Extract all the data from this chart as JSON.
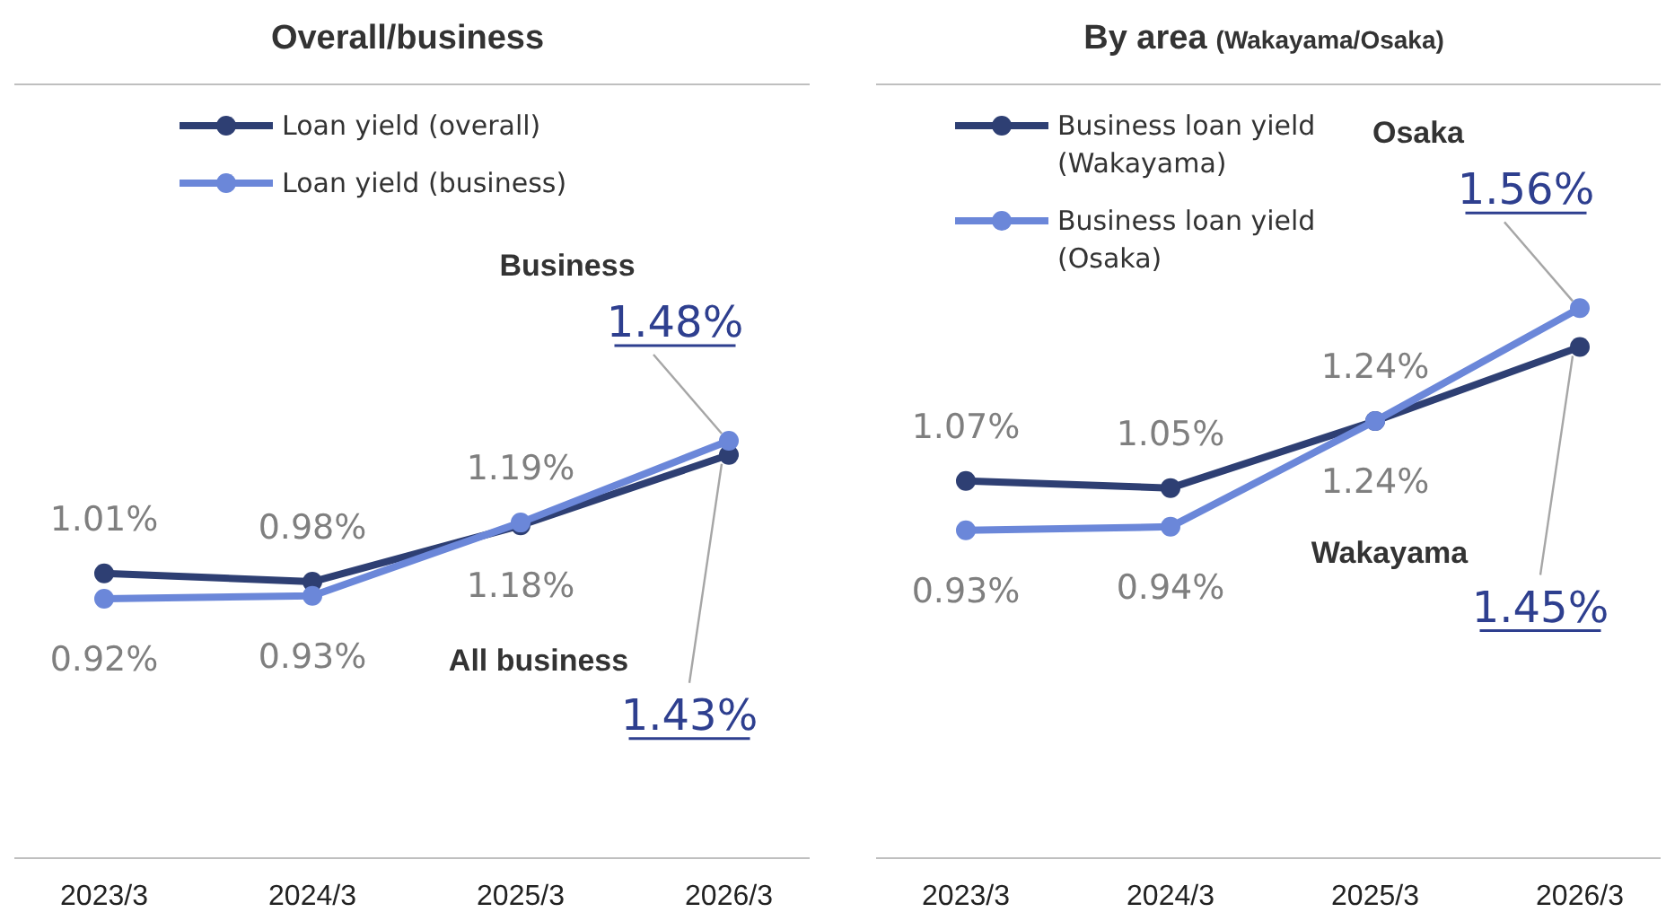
{
  "chart_data": [
    {
      "type": "line",
      "title": "Overall/business",
      "categories": [
        "2023/3",
        "2024/3",
        "2025/3",
        "2026/3"
      ],
      "ylim": [
        0,
        2.75
      ],
      "marker": "circle",
      "legend": "top left",
      "data_labels": true,
      "series": [
        {
          "name": "Loan yield (overall)",
          "color": "#2e3f73",
          "values": [
            1.01,
            0.98,
            1.18,
            1.43
          ],
          "value_labels": [
            "1.01%",
            "0.98%",
            "1.18%",
            "1.43%"
          ]
        },
        {
          "name": "Loan yield (business)",
          "color": "#6b87d9",
          "values": [
            0.92,
            0.93,
            1.19,
            1.48
          ],
          "value_labels": [
            "0.92%",
            "0.93%",
            "1.19%",
            "1.48%"
          ]
        }
      ],
      "annotations": [
        "Business",
        "All business"
      ]
    },
    {
      "type": "line",
      "title": "By area",
      "subtitle": "(Wakayama/Osaka)",
      "categories": [
        "2023/3",
        "2024/3",
        "2025/3",
        "2026/3"
      ],
      "ylim": [
        0,
        2.2
      ],
      "marker": "circle",
      "legend": "top left",
      "data_labels": true,
      "series": [
        {
          "name": "Business loan yield (Wakayama)",
          "color": "#2e3f73",
          "values": [
            1.07,
            1.05,
            1.24,
            1.45
          ],
          "value_labels": [
            "1.07%",
            "1.05%",
            "1.24%",
            "1.45%"
          ]
        },
        {
          "name": "Business loan yield (Osaka)",
          "color": "#6b87d9",
          "values": [
            0.93,
            0.94,
            1.24,
            1.56
          ],
          "value_labels": [
            "0.93%",
            "0.94%",
            "1.24%",
            "1.56%"
          ]
        }
      ],
      "annotations": [
        "Osaka",
        "Wakayama"
      ]
    }
  ]
}
